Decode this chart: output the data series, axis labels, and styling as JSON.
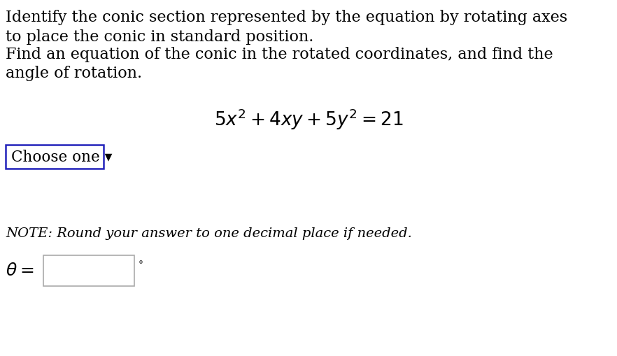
{
  "background_color": "#ffffff",
  "text_color": "#000000",
  "line1": "Identify the conic section represented by the equation by rotating axes",
  "line2": "to place the conic in standard position.",
  "line3": "Find an equation of the conic in the rotated coordinates, and find the",
  "line4": "angle of rotation.",
  "equation": "$5x^2 + 4xy + 5y^2 = 21$",
  "dropdown_label": "Choose one ▾",
  "note_text": "NOTE: Round your answer to one decimal place if needed.",
  "theta_label": "$\\theta =$",
  "degree_symbol": "°",
  "dropdown_border_color": "#2222bb",
  "input_border_color": "#aaaaaa",
  "body_fontsize": 16,
  "equation_fontsize": 19,
  "note_fontsize": 14,
  "theta_fontsize": 18,
  "dropdown_fontsize": 15.5,
  "fig_width": 8.82,
  "fig_height": 5.1,
  "dpi": 100
}
